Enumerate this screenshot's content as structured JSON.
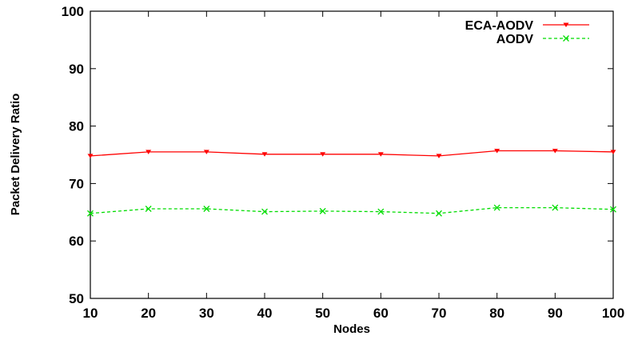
{
  "chart_data": {
    "type": "line",
    "title": "",
    "xlabel": "Nodes",
    "ylabel": "Packet Delivery Ratio",
    "x": [
      10,
      20,
      30,
      40,
      50,
      60,
      70,
      80,
      90,
      100
    ],
    "xlim": [
      10,
      100
    ],
    "ylim": [
      50,
      100
    ],
    "xticks": [
      10,
      20,
      30,
      40,
      50,
      60,
      70,
      80,
      90,
      100
    ],
    "yticks": [
      50,
      60,
      70,
      80,
      90,
      100
    ],
    "grid": false,
    "legend_position": "top-right",
    "series": [
      {
        "name": "ECA-AODV",
        "color": "#ff0000",
        "line_style": "solid",
        "marker": "triangle-down",
        "values": [
          74.8,
          75.5,
          75.5,
          75.1,
          75.1,
          75.1,
          74.8,
          75.7,
          75.7,
          75.5
        ]
      },
      {
        "name": "AODV",
        "color": "#00dd00",
        "line_style": "dashed",
        "marker": "x",
        "values": [
          64.8,
          65.6,
          65.6,
          65.1,
          65.2,
          65.1,
          64.8,
          65.8,
          65.8,
          65.5
        ]
      }
    ]
  }
}
